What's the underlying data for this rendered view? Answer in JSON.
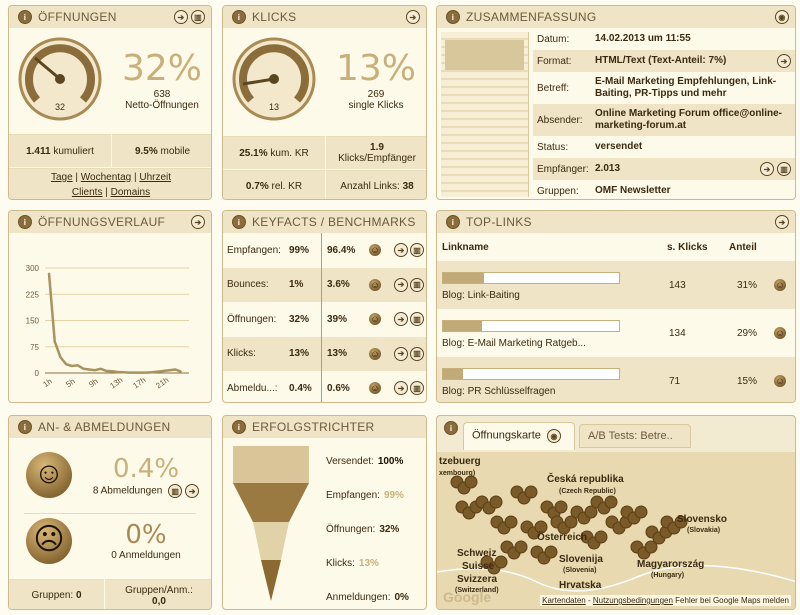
{
  "colors": {
    "accent": "#c8b07b",
    "header": "#efe4c6",
    "border": "#cdb98c",
    "text": "#3a2a10"
  },
  "oeffnungen": {
    "title": "ÖFFNUNGEN",
    "gauge_value": "32",
    "gauge_percent": 32,
    "percent": "32%",
    "count": "638",
    "count_label": "Netto-Öffnungen",
    "kumuliert_value": "1.411",
    "kumuliert_label": "kumuliert",
    "mobile_value": "9.5%",
    "mobile_label": "mobile",
    "links": [
      "Tage",
      "Wochentag",
      "Uhrzeit",
      "Clients",
      "Domains"
    ]
  },
  "klicks": {
    "title": "KLICKS",
    "gauge_value": "13",
    "gauge_percent": 13,
    "percent": "13%",
    "count": "269",
    "count_label": "single Klicks",
    "kum_kr_value": "25.1%",
    "kum_kr_label": "kum. KR",
    "kpe_value": "1.9",
    "kpe_label": "Klicks/Empfänger",
    "rel_kr_value": "0.7%",
    "rel_kr_label": "rel. KR",
    "links_label": "Anzahl Links:",
    "links_value": "38"
  },
  "zusammenfassung": {
    "title": "ZUSAMMENFASSUNG",
    "rows": [
      {
        "label": "Datum:",
        "value": "14.02.2013 um 11:55"
      },
      {
        "label": "Format:",
        "value": "HTML/Text (Text-Anteil: 7%)"
      },
      {
        "label": "Betreff:",
        "value": "E-Mail Marketing Empfehlungen, Link-Baiting, PR-Tipps und mehr"
      },
      {
        "label": "Absender:",
        "value": "Online Marketing Forum office@online-marketing-forum.at"
      },
      {
        "label": "Status:",
        "value": "versendet"
      },
      {
        "label": "Empfänger:",
        "value": "2.013"
      },
      {
        "label": "Gruppen:",
        "value": "OMF Newsletter"
      }
    ]
  },
  "verlauf": {
    "title": "ÖFFNUNGSVERLAUF"
  },
  "chart_data": {
    "type": "line",
    "x": [
      "1h",
      "2h",
      "3h",
      "4h",
      "5h",
      "6h",
      "7h",
      "8h",
      "9h",
      "10h",
      "11h",
      "12h",
      "13h",
      "14h",
      "15h",
      "16h",
      "17h",
      "18h",
      "19h",
      "20h",
      "21h",
      "22h",
      "23h",
      "24h"
    ],
    "values": [
      285,
      90,
      45,
      25,
      20,
      22,
      12,
      10,
      8,
      12,
      6,
      5,
      3,
      2,
      1,
      1,
      1,
      1,
      2,
      4,
      6,
      8,
      10,
      4
    ],
    "xticks": [
      "1h",
      "5h",
      "9h",
      "13h",
      "17h",
      "21h"
    ],
    "yticks": [
      "0",
      "75",
      "150",
      "225",
      "300"
    ],
    "ylim": [
      0,
      300
    ],
    "grid": true,
    "color": "#a8925e"
  },
  "keyfacts": {
    "title": "KEYFACTS / BENCHMARKS",
    "rows": [
      {
        "label": "Empfangen:",
        "value": "99%",
        "bench": "96.4%"
      },
      {
        "label": "Bounces:",
        "value": "1%",
        "bench": "3.6%"
      },
      {
        "label": "Öffnungen:",
        "value": "32%",
        "bench": "39%"
      },
      {
        "label": "Klicks:",
        "value": "13%",
        "bench": "13%"
      },
      {
        "label": "Abmeldu...:",
        "value": "0.4%",
        "bench": "0.6%"
      }
    ]
  },
  "toplinks": {
    "title": "TOP-LINKS",
    "headers": [
      "Linkname",
      "s. Klicks",
      "Anteil"
    ],
    "rows": [
      {
        "name": "Blog: Link-Baiting",
        "klicks": "143",
        "anteil": "31%",
        "share": 31
      },
      {
        "name": "Blog: E-Mail Marketing Ratgeb...",
        "klicks": "134",
        "anteil": "29%",
        "share": 29
      },
      {
        "name": "Blog: PR Schlüsselfragen",
        "klicks": "71",
        "anteil": "15%",
        "share": 15
      }
    ]
  },
  "anab": {
    "title": "AN- & ABMELDUNGEN",
    "ab_percent": "0.4%",
    "ab_label": "8 Abmeldungen",
    "an_percent": "0%",
    "an_label": "0 Anmeldungen",
    "gruppen_label": "Gruppen:",
    "gruppen_value": "0",
    "ga_label": "Gruppen/Anm.:",
    "ga_value": "0,0"
  },
  "trichter": {
    "title": "ERFOLGSTRICHTER",
    "rows": [
      {
        "label": "Versendet:",
        "value": "100%"
      },
      {
        "label": "Empfangen:",
        "value": "99%"
      },
      {
        "label": "Öffnungen:",
        "value": "32%"
      },
      {
        "label": "Klicks:",
        "value": "13%"
      },
      {
        "label": "Anmeldungen:",
        "value": "0%"
      }
    ]
  },
  "map": {
    "tabs": [
      "Öffnungskarte",
      "A/B Tests: Betre.."
    ],
    "labels": [
      "tzebuerg",
      "xembourg)",
      "Česká republika",
      "(Czech Republic)",
      "Slovensko",
      "(Slovakia)",
      "Schweiz",
      "Suisse",
      "Svizzera",
      "(Switzerland)",
      "Magyarország",
      "(Hungary)",
      "Slovenija",
      "(Slovenia)",
      "Hrvatska",
      "Österreich"
    ],
    "footer": [
      "Kartendaten",
      "Nutzungsbedingungen",
      "Fehler bei Google Maps melden"
    ],
    "logo": "Google"
  }
}
